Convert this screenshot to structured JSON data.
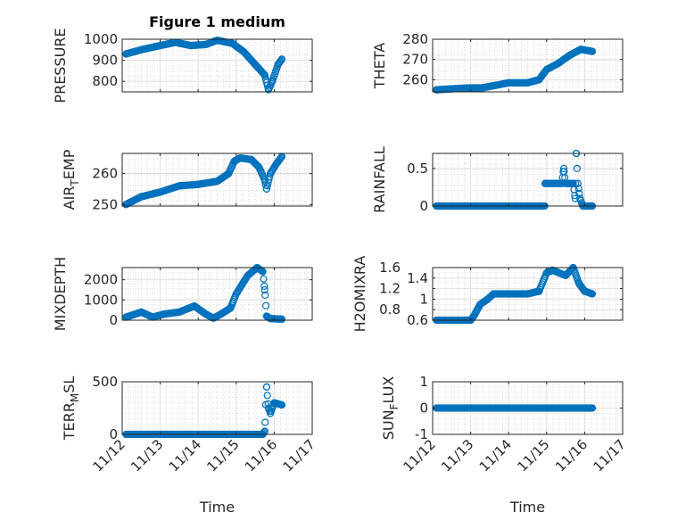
{
  "chart_data": [
    {
      "type": "scatter",
      "title": "Figure 1 medium",
      "ylabel": "PRESSURE",
      "xlabel": "",
      "ylim": [
        750,
        1000
      ],
      "yticks": [
        800,
        900,
        1000
      ],
      "yticklabels": [
        "800",
        "900",
        "1000"
      ],
      "points": [
        [
          12.1,
          930
        ],
        [
          12.5,
          950
        ],
        [
          13.0,
          970
        ],
        [
          13.4,
          985
        ],
        [
          13.8,
          970
        ],
        [
          14.2,
          975
        ],
        [
          14.5,
          995
        ],
        [
          14.9,
          980
        ],
        [
          15.2,
          940
        ],
        [
          15.5,
          880
        ],
        [
          15.75,
          830
        ],
        [
          15.85,
          760
        ],
        [
          15.95,
          800
        ],
        [
          16.1,
          880
        ],
        [
          16.2,
          905
        ]
      ]
    },
    {
      "type": "scatter",
      "title": "",
      "ylabel": "THETA",
      "xlabel": "",
      "ylim": [
        254,
        280
      ],
      "yticks": [
        260,
        270,
        280
      ],
      "yticklabels": [
        "260",
        "270",
        "280"
      ],
      "points": [
        [
          12.1,
          255
        ],
        [
          12.5,
          255.5
        ],
        [
          13.0,
          256
        ],
        [
          13.3,
          256
        ],
        [
          13.6,
          257
        ],
        [
          14.0,
          258.5
        ],
        [
          14.5,
          258.5
        ],
        [
          14.8,
          260
        ],
        [
          15.0,
          265
        ],
        [
          15.3,
          268
        ],
        [
          15.6,
          272
        ],
        [
          15.8,
          274
        ],
        [
          15.9,
          275
        ],
        [
          16.2,
          274
        ]
      ]
    },
    {
      "type": "scatter",
      "title": "",
      "ylabel": "AIR_TEMP",
      "xlabel": "",
      "ylim": [
        249.5,
        266.5
      ],
      "yticks": [
        250,
        260
      ],
      "yticklabels": [
        "250",
        "260"
      ],
      "points": [
        [
          12.1,
          250
        ],
        [
          12.5,
          252.5
        ],
        [
          13.0,
          254
        ],
        [
          13.5,
          256
        ],
        [
          14.0,
          256.5
        ],
        [
          14.5,
          257.5
        ],
        [
          14.8,
          260
        ],
        [
          14.95,
          264
        ],
        [
          15.1,
          265
        ],
        [
          15.4,
          264.5
        ],
        [
          15.6,
          262
        ],
        [
          15.75,
          258
        ],
        [
          15.8,
          255
        ],
        [
          15.9,
          260
        ],
        [
          16.05,
          263
        ],
        [
          16.2,
          265.5
        ]
      ]
    },
    {
      "type": "scatter",
      "title": "",
      "ylabel": "RAINFALL",
      "xlabel": "",
      "ylim": [
        0,
        0.7
      ],
      "yticks": [
        0,
        0.5
      ],
      "yticklabels": [
        "0",
        "0.5"
      ],
      "points": [
        [
          12.1,
          0
        ],
        [
          14.95,
          0
        ],
        [
          14.96,
          0.3
        ],
        [
          15.4,
          0.3
        ],
        [
          15.45,
          0.5
        ],
        [
          15.5,
          0.3
        ],
        [
          15.7,
          0.3
        ],
        [
          15.75,
          0.1
        ],
        [
          15.78,
          0.7
        ],
        [
          15.82,
          0.3
        ],
        [
          15.88,
          0.1
        ],
        [
          15.95,
          0
        ],
        [
          16.2,
          0
        ]
      ]
    },
    {
      "type": "scatter",
      "title": "",
      "ylabel": "MIXDEPTH",
      "xlabel": "",
      "ylim": [
        0,
        2600
      ],
      "yticks": [
        0,
        1000,
        2000
      ],
      "yticklabels": [
        "0",
        "1000",
        "2000"
      ],
      "points": [
        [
          12.1,
          150
        ],
        [
          12.5,
          400
        ],
        [
          12.8,
          150
        ],
        [
          13.1,
          300
        ],
        [
          13.5,
          400
        ],
        [
          13.9,
          700
        ],
        [
          14.2,
          300
        ],
        [
          14.4,
          100
        ],
        [
          14.6,
          300
        ],
        [
          14.85,
          600
        ],
        [
          15.0,
          1300
        ],
        [
          15.3,
          2200
        ],
        [
          15.55,
          2600
        ],
        [
          15.7,
          2400
        ],
        [
          15.75,
          1500
        ],
        [
          15.8,
          200
        ],
        [
          15.9,
          80
        ],
        [
          16.2,
          50
        ]
      ]
    },
    {
      "type": "scatter",
      "title": "",
      "ylabel": "H2OMIXRA",
      "xlabel": "",
      "ylim": [
        0.6,
        1.6
      ],
      "yticks": [
        0.6,
        0.8,
        1,
        1.2,
        1.4,
        1.6
      ],
      "yticklabels": [
        "0.6",
        "0.8",
        "1",
        "1.2",
        "1.4",
        "1.6"
      ],
      "points": [
        [
          12.1,
          0.6
        ],
        [
          13.0,
          0.6
        ],
        [
          13.1,
          0.7
        ],
        [
          13.25,
          0.9
        ],
        [
          13.45,
          1.0
        ],
        [
          13.6,
          1.1
        ],
        [
          14.5,
          1.1
        ],
        [
          14.8,
          1.15
        ],
        [
          15.0,
          1.5
        ],
        [
          15.15,
          1.55
        ],
        [
          15.5,
          1.45
        ],
        [
          15.7,
          1.6
        ],
        [
          15.85,
          1.3
        ],
        [
          16.0,
          1.15
        ],
        [
          16.2,
          1.1
        ]
      ]
    },
    {
      "type": "scatter",
      "title": "",
      "ylabel": "TERR_MSL",
      "xlabel": "Time",
      "ylim": [
        0,
        500
      ],
      "yticks": [
        0,
        500
      ],
      "yticklabels": [
        "0",
        "500"
      ],
      "points": [
        [
          12.1,
          0
        ],
        [
          15.7,
          0
        ],
        [
          15.75,
          30
        ],
        [
          15.8,
          450
        ],
        [
          15.85,
          250
        ],
        [
          15.9,
          200
        ],
        [
          16.0,
          300
        ],
        [
          16.2,
          280
        ]
      ]
    },
    {
      "type": "scatter",
      "title": "",
      "ylabel": "SUN_FLUX",
      "xlabel": "Time",
      "ylim": [
        -1,
        1
      ],
      "yticks": [
        -1,
        0,
        1
      ],
      "yticklabels": [
        "-1",
        "0",
        "1"
      ],
      "points": [
        [
          12.1,
          0
        ],
        [
          16.2,
          0
        ]
      ]
    }
  ],
  "xaxis": {
    "xlim": [
      12,
      17
    ],
    "xticks": [
      12,
      13,
      14,
      15,
      16,
      17
    ],
    "xticklabels": [
      "11/12",
      "11/13",
      "11/14",
      "11/15",
      "11/16",
      "11/17"
    ]
  },
  "colors": {
    "marker": "#0072BD",
    "axis": "#262626",
    "grid": "#dfdfdf"
  }
}
